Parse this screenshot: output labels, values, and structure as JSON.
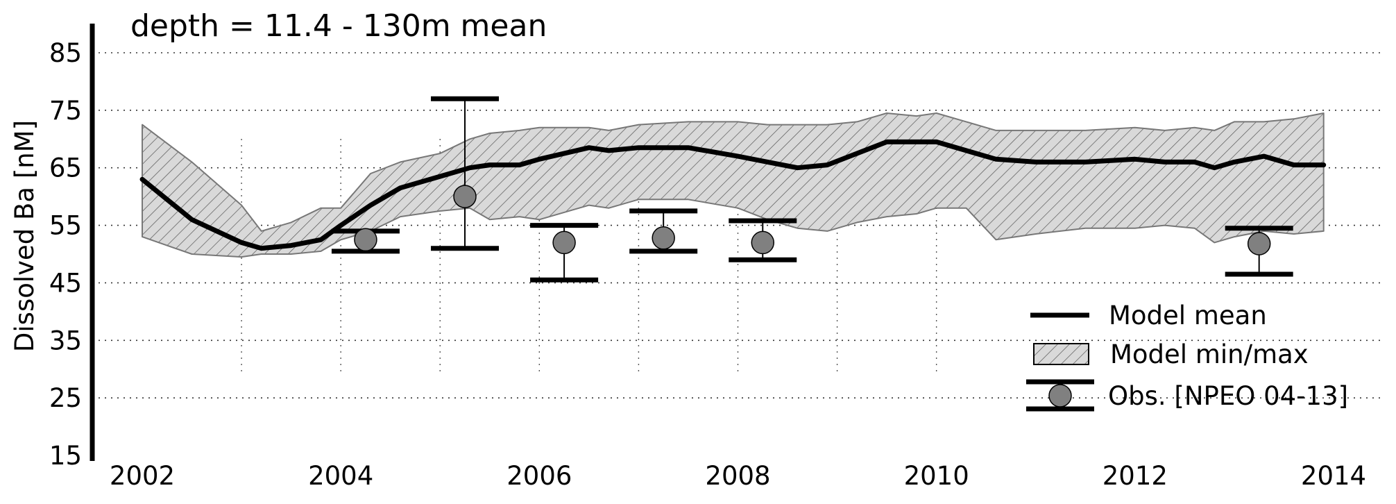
{
  "chart_data": {
    "type": "line",
    "title": "depth = 11.4 - 130m mean",
    "ylabel": "Dissolved Ba [nM]",
    "xlabel": "",
    "xlim": [
      2001.6,
      2014.4
    ],
    "ylim": [
      15,
      91
    ],
    "xticks": [
      2002,
      2004,
      2006,
      2008,
      2010,
      2012,
      2014
    ],
    "yticks": [
      15,
      25,
      35,
      45,
      55,
      65,
      75,
      85
    ],
    "grid": {
      "y": "dotted",
      "x": "dotted, partial"
    },
    "legend_position": "lower-right",
    "legend": {
      "mean_label": "Model mean",
      "range_label": "Model min/max",
      "obs_label": "Obs. [NPEO 04-13]"
    },
    "colors": {
      "mean_line": "#000000",
      "band_fill": "#d9d9d9",
      "band_edge": "#777777",
      "obs_marker": "#808080"
    },
    "series": [
      {
        "name": "Model mean",
        "x": [
          2002.0,
          2002.5,
          2003.0,
          2003.2,
          2003.5,
          2003.8,
          2004.0,
          2004.3,
          2004.6,
          2005.0,
          2005.3,
          2005.5,
          2005.8,
          2006.0,
          2006.5,
          2006.7,
          2007.0,
          2007.5,
          2008.0,
          2008.3,
          2008.6,
          2008.9,
          2009.2,
          2009.5,
          2009.8,
          2010.0,
          2010.3,
          2010.6,
          2011.0,
          2011.5,
          2012.0,
          2012.3,
          2012.6,
          2012.8,
          2013.0,
          2013.3,
          2013.6,
          2013.9
        ],
        "y": [
          63,
          56,
          52,
          51,
          51.5,
          52.5,
          55,
          58.5,
          61.5,
          63.5,
          65,
          65.5,
          65.5,
          66.5,
          68.5,
          68,
          68.5,
          68.5,
          67,
          66,
          65,
          65.5,
          67.5,
          69.5,
          69.5,
          69.5,
          68,
          66.5,
          66,
          66,
          66.5,
          66,
          66,
          65,
          66,
          67,
          65.5,
          65.5
        ]
      },
      {
        "name": "Model min/max",
        "x": [
          2002.0,
          2002.5,
          2003.0,
          2003.2,
          2003.5,
          2003.8,
          2004.0,
          2004.3,
          2004.6,
          2005.0,
          2005.3,
          2005.5,
          2005.8,
          2006.0,
          2006.5,
          2006.7,
          2007.0,
          2007.5,
          2008.0,
          2008.3,
          2008.6,
          2008.9,
          2009.2,
          2009.5,
          2009.8,
          2010.0,
          2010.3,
          2010.6,
          2011.0,
          2011.5,
          2012.0,
          2012.3,
          2012.6,
          2012.8,
          2013.0,
          2013.3,
          2013.6,
          2013.9
        ],
        "min": [
          53,
          50,
          49.5,
          50,
          50,
          50.5,
          52.5,
          54,
          56.5,
          57.5,
          58,
          56,
          56.5,
          56,
          58.5,
          58,
          59.5,
          59.5,
          58,
          56,
          54.5,
          54,
          55.5,
          56.5,
          57,
          58,
          58,
          52.5,
          53.5,
          54.5,
          54.5,
          55,
          54.5,
          52,
          53,
          54,
          53.5,
          54
        ],
        "max": [
          72.5,
          66,
          58.5,
          54,
          55.5,
          58,
          58,
          64,
          66,
          67.5,
          70,
          71,
          71.5,
          72,
          72,
          71.5,
          72.5,
          73,
          73,
          72.5,
          72.5,
          72.5,
          73,
          74.5,
          74,
          74.5,
          73,
          71.5,
          71.5,
          71.5,
          72,
          71.5,
          72,
          71.5,
          73,
          73,
          73.5,
          74.5
        ]
      },
      {
        "name": "Obs. [NPEO 04-13]",
        "x": [
          2004.25,
          2005.25,
          2006.25,
          2007.25,
          2008.25,
          2013.25
        ],
        "y": [
          52.5,
          60,
          52,
          52.8,
          52,
          51.8
        ],
        "err_low": [
          50.5,
          51,
          45.5,
          50.5,
          49,
          46.5
        ],
        "err_high": [
          54,
          77,
          55,
          57.5,
          55.8,
          54.5
        ]
      }
    ]
  }
}
